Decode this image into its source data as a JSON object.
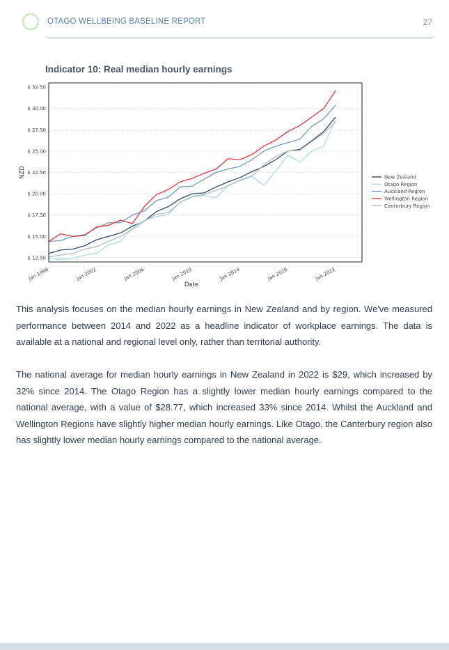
{
  "header": {
    "title": "OTAGO WELLBEING BASELINE REPORT",
    "page_number": "27",
    "logo_icon": "leaf-wreath-icon"
  },
  "chart_title": "Indicator 10: Real median hourly earnings",
  "chart_data": {
    "type": "line",
    "title": "Indicator 10: Real median hourly earnings",
    "xlabel": "Date",
    "ylabel": "NZD",
    "x": [
      1998,
      1999,
      2000,
      2001,
      2002,
      2003,
      2004,
      2005,
      2006,
      2007,
      2008,
      2009,
      2010,
      2011,
      2012,
      2013,
      2014,
      2015,
      2016,
      2017,
      2018,
      2019,
      2020,
      2021,
      2022
    ],
    "x_ticks": [
      "Jan 1998",
      "Jan 2002",
      "Jan 2006",
      "Jan 2010",
      "Jan 2014",
      "Jan 2018",
      "Jan 2022"
    ],
    "x_tick_values": [
      1998,
      2002,
      2006,
      2010,
      2014,
      2018,
      2022
    ],
    "y_ticks": [
      "$ 12.50",
      "$ 15.00",
      "$ 17.50",
      "$ 20.00",
      "$ 22.50",
      "$ 25.00",
      "$ 27.50",
      "$ 30.00",
      "$ 32.50"
    ],
    "y_tick_values": [
      12.5,
      15,
      17.5,
      20,
      22.5,
      25,
      27.5,
      30,
      32.5
    ],
    "xlim": [
      1998,
      2024.2
    ],
    "ylim": [
      12.0,
      33.0
    ],
    "grid": true,
    "legend_position": "right",
    "series": [
      {
        "name": "New Zealand",
        "color": "#2e4a6b",
        "values": [
          13.0,
          13.4,
          13.5,
          13.9,
          14.6,
          15.0,
          15.4,
          16.2,
          16.8,
          17.9,
          18.5,
          19.4,
          20.0,
          20.1,
          20.8,
          21.4,
          21.9,
          22.6,
          23.2,
          24.0,
          25.0,
          25.2,
          26.2,
          27.3,
          29.0
        ]
      },
      {
        "name": "Otago Region",
        "color": "#a8dce6",
        "values": [
          12.4,
          12.3,
          12.4,
          12.8,
          13.0,
          14.0,
          14.4,
          16.0,
          16.9,
          17.3,
          17.6,
          19.0,
          19.6,
          19.8,
          19.5,
          21.0,
          21.5,
          22.0,
          21.0,
          22.7,
          24.5,
          23.7,
          25.0,
          25.6,
          28.8
        ]
      },
      {
        "name": "Auckland Region",
        "color": "#6f9cc4",
        "values": [
          14.4,
          14.5,
          15.0,
          15.2,
          16.0,
          16.6,
          16.6,
          17.5,
          18.0,
          19.2,
          19.6,
          20.8,
          20.9,
          21.7,
          22.5,
          22.9,
          23.2,
          24.0,
          25.0,
          25.6,
          26.0,
          26.4,
          27.9,
          28.8,
          30.4
        ]
      },
      {
        "name": "Wellington Region",
        "color": "#e0363c",
        "values": [
          14.4,
          15.3,
          15.0,
          15.1,
          16.1,
          16.3,
          16.9,
          16.5,
          18.5,
          19.9,
          20.5,
          21.4,
          21.8,
          22.4,
          22.9,
          24.1,
          24.0,
          24.6,
          25.6,
          26.3,
          27.3,
          28.0,
          29.0,
          30.0,
          32.1
        ]
      },
      {
        "name": "Canterbury Region",
        "color": "#b5bcc4",
        "values": [
          12.6,
          12.8,
          13.0,
          13.5,
          13.8,
          14.4,
          15.0,
          15.8,
          16.8,
          17.6,
          17.8,
          19.0,
          19.7,
          19.9,
          20.4,
          20.9,
          21.6,
          22.1,
          23.4,
          24.4,
          25.0,
          25.1,
          26.1,
          27.1,
          28.4
        ]
      }
    ]
  },
  "paragraphs": [
    "This analysis focuses on the median hourly earnings in New Zealand and by region. We've measured performance between 2014 and 2022 as a headline indicator of workplace earnings. The data is available at a national and regional level only, rather than territorial authority.",
    "The national average for median hourly earnings in New Zealand in 2022 is $29, which increased by 32% since 2014. The Otago Region has a slightly lower median hourly earnings compared to the national average, with a value of $28.77, which increased 33% since 2014. Whilst the Auckland and Wellington Regions have slightly higher median hourly earnings. Like Otago, the Canterbury region also has slightly lower median hourly earnings compared to the national average."
  ]
}
